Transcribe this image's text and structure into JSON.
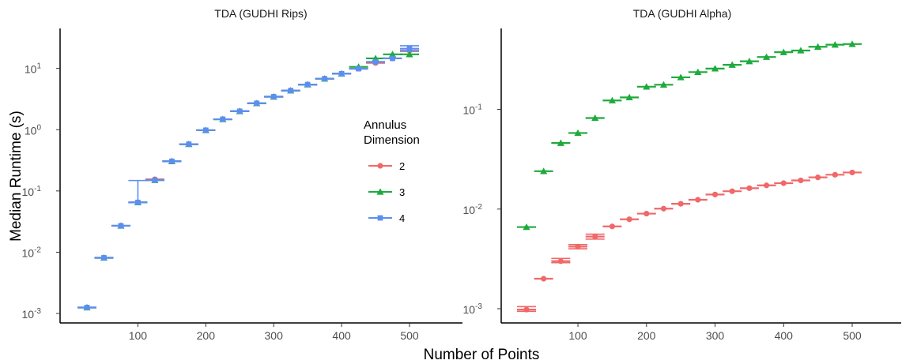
{
  "chart_data": [
    {
      "type": "scatter",
      "title": "TDA (GUDHI Rips)",
      "xlabel": "Number of Points",
      "ylabel": "Median Runtime (s)",
      "yscale": "log10",
      "xlim": [
        0,
        590
      ],
      "ylim": [
        0.0007,
        45
      ],
      "xticks": [
        100,
        200,
        300,
        400,
        500
      ],
      "yticks": [
        0.001,
        0.01,
        0.1,
        1,
        10
      ],
      "x": [
        25,
        50,
        75,
        100,
        125,
        150,
        175,
        200,
        225,
        250,
        275,
        300,
        325,
        350,
        375,
        400,
        425,
        450,
        475,
        500
      ],
      "series": [
        {
          "name": "2",
          "values": [
            0.00125,
            0.0081,
            0.027,
            0.065,
            0.155,
            0.305,
            0.58,
            0.98,
            1.48,
            2.0,
            2.7,
            3.45,
            4.35,
            5.45,
            6.8,
            8.2,
            9.9,
            12.3,
            14.6,
            19.5
          ]
        },
        {
          "name": "3",
          "values": [
            0.00125,
            0.0081,
            0.027,
            0.065,
            0.15,
            0.305,
            0.58,
            0.98,
            1.48,
            2.0,
            2.7,
            3.45,
            4.35,
            5.45,
            6.8,
            8.2,
            10.6,
            14.6,
            17.0,
            17.0
          ]
        },
        {
          "name": "4",
          "values": [
            0.00125,
            0.0081,
            0.027,
            0.065,
            0.15,
            0.305,
            0.58,
            0.98,
            1.48,
            2.0,
            2.7,
            3.45,
            4.35,
            5.45,
            6.8,
            8.2,
            9.9,
            12.8,
            14.6,
            21.0
          ]
        }
      ],
      "errorbars": [
        {
          "series": "4",
          "x": 100,
          "low": 0.065,
          "high": 0.148
        },
        {
          "series": "4",
          "x": 500,
          "low": 19.0,
          "high": 23.5
        }
      ]
    },
    {
      "type": "scatter",
      "title": "TDA (GUDHI Alpha)",
      "xlabel": "Number of Points",
      "yscale": "log10",
      "xlim": [
        0,
        590
      ],
      "ylim": [
        0.00072,
        0.65
      ],
      "xticks": [
        100,
        200,
        300,
        400,
        500
      ],
      "yticks": [
        0.001,
        0.01,
        0.1
      ],
      "x": [
        25,
        50,
        75,
        100,
        125,
        150,
        175,
        200,
        225,
        250,
        275,
        300,
        325,
        350,
        375,
        400,
        425,
        450,
        475,
        500
      ],
      "series": [
        {
          "name": "2",
          "values": [
            0.00098,
            0.002,
            0.003,
            0.0042,
            0.0053,
            0.0067,
            0.0079,
            0.009,
            0.0101,
            0.0113,
            0.0124,
            0.014,
            0.0151,
            0.0162,
            0.0173,
            0.0182,
            0.0194,
            0.0208,
            0.0221,
            0.0233
          ]
        },
        {
          "name": "3",
          "values": [
            0.0066,
            0.024,
            0.046,
            0.058,
            0.082,
            0.123,
            0.132,
            0.169,
            0.177,
            0.21,
            0.237,
            0.257,
            0.28,
            0.304,
            0.336,
            0.375,
            0.39,
            0.425,
            0.446,
            0.453
          ]
        }
      ],
      "errorbars": [
        {
          "series": "2",
          "x": 25,
          "low": 0.00094,
          "high": 0.00105
        },
        {
          "series": "2",
          "x": 75,
          "low": 0.0029,
          "high": 0.0032
        },
        {
          "series": "2",
          "x": 100,
          "low": 0.004,
          "high": 0.0044
        },
        {
          "series": "2",
          "x": 125,
          "low": 0.005,
          "high": 0.0056
        }
      ]
    }
  ],
  "legend": {
    "title_lines": [
      "Annulus",
      "Dimension"
    ],
    "items": [
      {
        "label": "2",
        "color": "#F0686A",
        "shape": "circle"
      },
      {
        "label": "3",
        "color": "#1EAA3C",
        "shape": "triangle"
      },
      {
        "label": "4",
        "color": "#5B8EF2",
        "shape": "square"
      }
    ]
  },
  "colors": {
    "2": "#F0686A",
    "3": "#1EAA3C",
    "4": "#5B8EF2"
  }
}
